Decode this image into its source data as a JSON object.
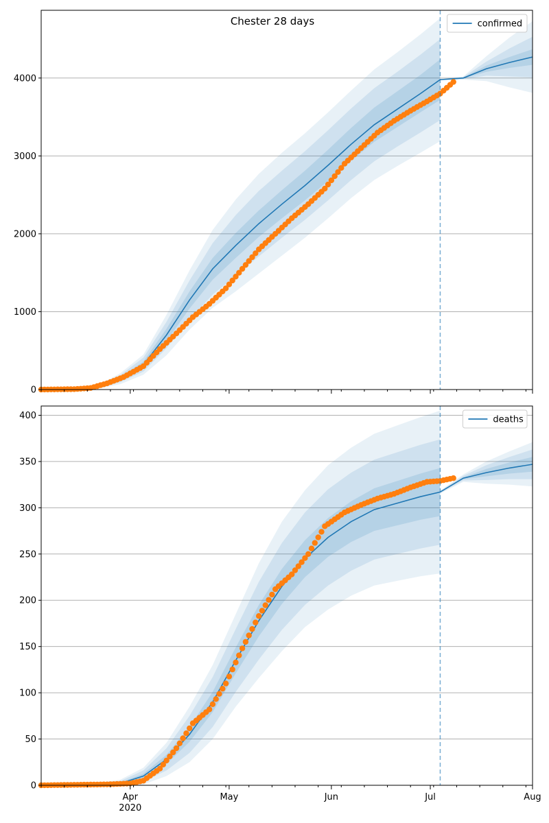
{
  "figure": {
    "title": "Chester 28 days"
  },
  "chart_data": [
    {
      "type": "line",
      "legend_position": "top-right",
      "grid": "horizontal",
      "ylim": [
        0,
        4870
      ],
      "yticks": [
        0,
        1000,
        2000,
        3000,
        4000
      ],
      "xlim": [
        "2020-03-05",
        "2020-08-01"
      ],
      "xticks": [],
      "forecast_start": "2020-07-04",
      "series": [
        {
          "name": "confirmed",
          "kind": "model",
          "color": "#1f77b4",
          "x": [
            "2020-03-05",
            "2020-03-15",
            "2020-03-22",
            "2020-03-29",
            "2020-04-05",
            "2020-04-12",
            "2020-04-19",
            "2020-04-26",
            "2020-05-03",
            "2020-05-10",
            "2020-05-17",
            "2020-05-24",
            "2020-05-31",
            "2020-06-07",
            "2020-06-14",
            "2020-06-21",
            "2020-06-28",
            "2020-07-04",
            "2020-07-11",
            "2020-07-18",
            "2020-07-25",
            "2020-08-01"
          ],
          "values": [
            0,
            5,
            30,
            140,
            320,
            700,
            1150,
            1550,
            1850,
            2130,
            2380,
            2620,
            2880,
            3150,
            3400,
            3600,
            3800,
            3980,
            4000,
            4120,
            4200,
            4270
          ]
        },
        {
          "name": "",
          "kind": "observed",
          "color": "#ff7f0e",
          "x": [
            "2020-03-05",
            "2020-03-15",
            "2020-03-20",
            "2020-03-25",
            "2020-03-30",
            "2020-04-05",
            "2020-04-10",
            "2020-04-15",
            "2020-04-20",
            "2020-04-25",
            "2020-04-30",
            "2020-05-05",
            "2020-05-10",
            "2020-05-15",
            "2020-05-20",
            "2020-05-25",
            "2020-05-30",
            "2020-06-05",
            "2020-06-10",
            "2020-06-15",
            "2020-06-20",
            "2020-06-25",
            "2020-06-30",
            "2020-07-04",
            "2020-07-08"
          ],
          "values": [
            0,
            5,
            20,
            80,
            160,
            300,
            520,
            720,
            930,
            1100,
            1300,
            1550,
            1800,
            2000,
            2200,
            2380,
            2580,
            2900,
            3100,
            3300,
            3450,
            3580,
            3700,
            3800,
            3950
          ]
        }
      ],
      "bands": {
        "x": [
          "2020-03-05",
          "2020-03-15",
          "2020-03-22",
          "2020-03-29",
          "2020-04-05",
          "2020-04-12",
          "2020-04-19",
          "2020-04-26",
          "2020-05-03",
          "2020-05-10",
          "2020-05-17",
          "2020-05-24",
          "2020-05-31",
          "2020-06-07",
          "2020-06-14",
          "2020-06-21",
          "2020-06-28",
          "2020-07-04",
          "2020-07-11",
          "2020-07-18",
          "2020-07-25",
          "2020-08-01"
        ],
        "widths": [
          [
            0,
            2,
            20,
            70,
            130,
            260,
            380,
            500,
            590,
            640,
            660,
            670,
            680,
            690,
            710,
            730,
            760,
            790,
            20,
            160,
            320,
            460
          ],
          [
            0,
            2,
            12,
            45,
            90,
            170,
            250,
            330,
            390,
            420,
            430,
            440,
            450,
            460,
            470,
            480,
            500,
            520,
            12,
            90,
            180,
            260
          ],
          [
            0,
            1,
            5,
            20,
            40,
            80,
            110,
            140,
            160,
            170,
            180,
            190,
            200,
            210,
            220,
            230,
            240,
            260,
            6,
            40,
            70,
            100
          ]
        ]
      }
    },
    {
      "type": "line",
      "legend_position": "top-right",
      "grid": "horizontal",
      "ylim": [
        0,
        410
      ],
      "yticks": [
        0,
        50,
        100,
        150,
        200,
        250,
        300,
        350,
        400
      ],
      "xlim": [
        "2020-03-05",
        "2020-08-01"
      ],
      "xticks": [
        "Apr\n2020",
        "May",
        "Jun",
        "Jul",
        "Aug"
      ],
      "forecast_start": "2020-07-04",
      "series": [
        {
          "name": "deaths",
          "kind": "model",
          "color": "#1f77b4",
          "x": [
            "2020-03-05",
            "2020-03-20",
            "2020-03-29",
            "2020-04-05",
            "2020-04-12",
            "2020-04-19",
            "2020-04-26",
            "2020-05-03",
            "2020-05-10",
            "2020-05-17",
            "2020-05-24",
            "2020-05-31",
            "2020-06-07",
            "2020-06-14",
            "2020-06-21",
            "2020-06-28",
            "2020-07-04",
            "2020-07-11",
            "2020-07-18",
            "2020-07-25",
            "2020-08-01"
          ],
          "values": [
            0,
            0.5,
            2,
            10,
            28,
            55,
            90,
            135,
            178,
            215,
            245,
            268,
            285,
            298,
            305,
            312,
            317,
            332,
            338,
            343,
            347
          ]
        },
        {
          "name": "",
          "kind": "observed",
          "color": "#ff7f0e",
          "x": [
            "2020-03-05",
            "2020-03-25",
            "2020-04-01",
            "2020-04-05",
            "2020-04-10",
            "2020-04-15",
            "2020-04-20",
            "2020-04-25",
            "2020-04-30",
            "2020-05-05",
            "2020-05-10",
            "2020-05-15",
            "2020-05-20",
            "2020-05-25",
            "2020-05-30",
            "2020-06-05",
            "2020-06-10",
            "2020-06-15",
            "2020-06-20",
            "2020-06-25",
            "2020-06-30",
            "2020-07-04",
            "2020-07-08"
          ],
          "values": [
            0,
            1,
            2,
            5,
            18,
            40,
            67,
            82,
            110,
            148,
            183,
            212,
            228,
            250,
            280,
            295,
            303,
            310,
            315,
            322,
            328,
            329,
            332
          ]
        }
      ],
      "bands": {
        "x": [
          "2020-03-05",
          "2020-03-20",
          "2020-03-29",
          "2020-04-05",
          "2020-04-12",
          "2020-04-19",
          "2020-04-26",
          "2020-05-03",
          "2020-05-10",
          "2020-05-17",
          "2020-05-24",
          "2020-05-31",
          "2020-06-07",
          "2020-06-14",
          "2020-06-21",
          "2020-06-28",
          "2020-07-04",
          "2020-07-11",
          "2020-07-18",
          "2020-07-25",
          "2020-08-01"
        ],
        "widths": [
          [
            0,
            1,
            4,
            9,
            18,
            30,
            40,
            50,
            62,
            70,
            74,
            78,
            80,
            82,
            84,
            86,
            88,
            4,
            12,
            18,
            24
          ],
          [
            0,
            0.6,
            2.5,
            6,
            12,
            20,
            27,
            34,
            42,
            47,
            50,
            52,
            53,
            54,
            55,
            56,
            57,
            2.5,
            8,
            12,
            16
          ],
          [
            0,
            0.3,
            1,
            2.5,
            5,
            8,
            11,
            14,
            17,
            19,
            20,
            21,
            22,
            23,
            24,
            25,
            26,
            1,
            4,
            6,
            8
          ]
        ]
      }
    }
  ]
}
